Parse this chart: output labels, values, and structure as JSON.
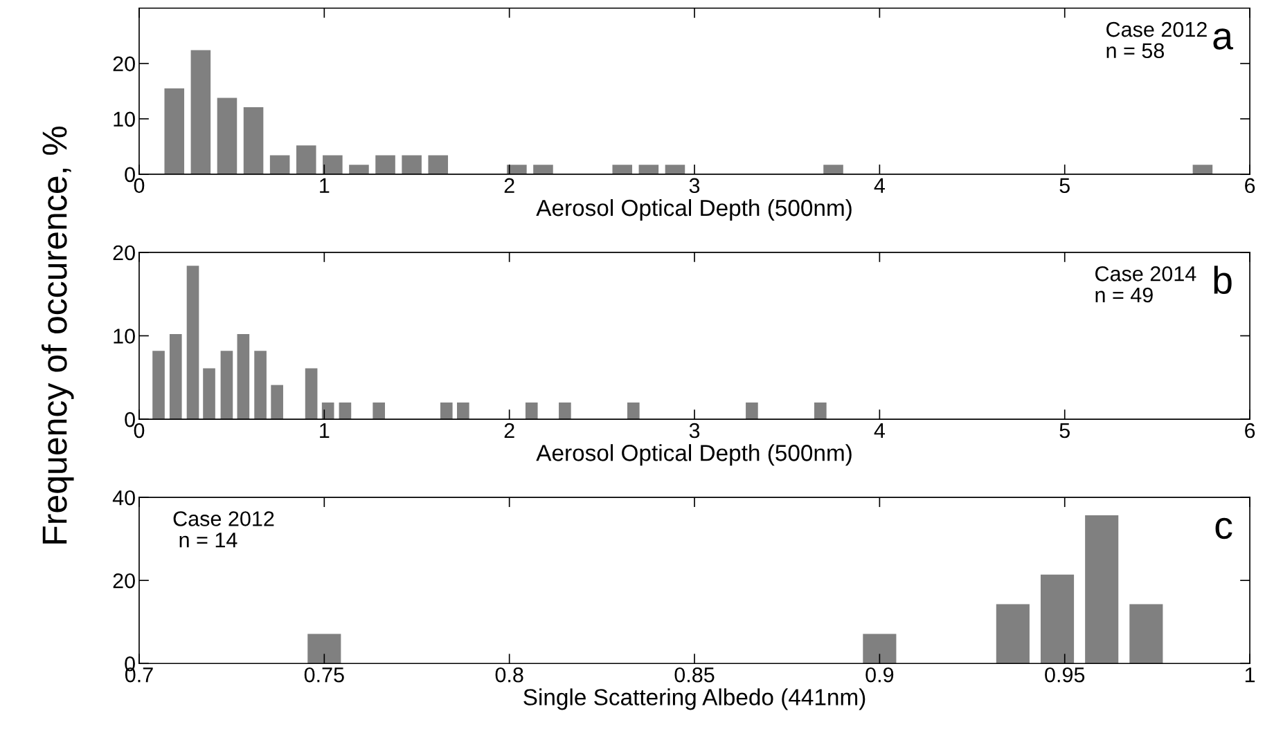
{
  "chart_data": [
    {
      "type": "bar",
      "xlabel": "Aerosol Optical Depth (500nm)",
      "annotations": [
        "Case 2012\nn = 58",
        "a"
      ],
      "x": [
        0.19,
        0.3325,
        0.475,
        0.6175,
        0.76,
        0.9025,
        1.045,
        1.1875,
        1.33,
        1.4725,
        1.615,
        2.04,
        2.1825,
        2.61,
        2.7525,
        2.895,
        3.75,
        5.745
      ],
      "values": [
        15.5,
        22.4,
        13.8,
        12.1,
        3.4,
        5.2,
        3.4,
        1.7,
        3.4,
        3.4,
        3.4,
        1.7,
        1.7,
        1.7,
        1.7,
        1.7,
        1.7,
        1.7
      ],
      "color": "#808080",
      "xlim": [
        0,
        6
      ],
      "xticks": [
        0,
        1,
        2,
        3,
        4,
        5,
        6
      ],
      "ylim": [
        0,
        30
      ],
      "yticks": [
        0,
        10,
        20
      ],
      "grid": false
    },
    {
      "type": "bar",
      "xlabel": "Aerosol Optical Depth (500nm)",
      "ylabel": "Frequency of occurence, %",
      "annotations": [
        "Case 2014\nn = 49",
        "b"
      ],
      "x": [
        0.105,
        0.1975,
        0.29,
        0.378,
        0.473,
        0.5625,
        0.655,
        0.745,
        0.93,
        1.02,
        1.1125,
        1.295,
        1.66,
        1.75,
        2.12,
        2.3,
        2.67,
        3.31,
        3.68
      ],
      "values": [
        8.2,
        10.2,
        18.4,
        6.1,
        8.2,
        10.2,
        8.2,
        4.1,
        6.1,
        2.0,
        2.0,
        2.0,
        2.0,
        2.0,
        2.0,
        2.0,
        2.0,
        2.0,
        2.0
      ],
      "color": "#808080",
      "xlim": [
        0,
        6
      ],
      "xticks": [
        0,
        1,
        2,
        3,
        4,
        5,
        6
      ],
      "ylim": [
        0,
        20
      ],
      "yticks": [
        0,
        10,
        20
      ],
      "grid": false
    },
    {
      "type": "bar",
      "xlabel": "Single Scattering Albedo (441nm)",
      "annotations": [
        "Case 2012\n n = 14",
        "c"
      ],
      "x": [
        0.75,
        0.9,
        0.936,
        0.948,
        0.96,
        0.972
      ],
      "values": [
        7.1,
        7.1,
        14.3,
        21.4,
        35.7,
        14.3
      ],
      "color": "#808080",
      "xlim": [
        0.7,
        1
      ],
      "xticks": [
        0.7,
        0.75,
        0.8,
        0.85,
        0.9,
        0.95,
        1
      ],
      "ylim": [
        0,
        40
      ],
      "yticks": [
        0,
        20,
        40
      ],
      "grid": false
    }
  ]
}
